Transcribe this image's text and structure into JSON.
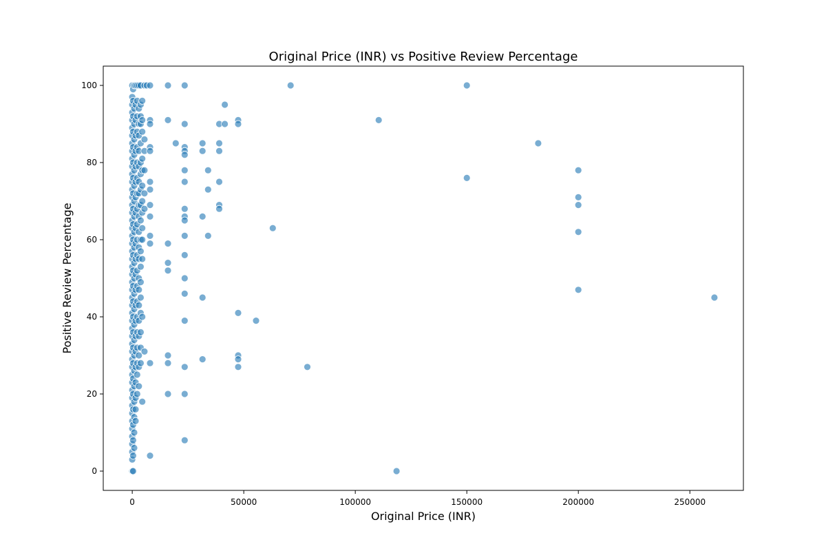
{
  "chart_data": {
    "type": "scatter",
    "title": "Original Price (INR) vs Positive Review Percentage",
    "xlabel": "Original Price (INR)",
    "ylabel": "Positive Review Percentage",
    "xlim": [
      -13000,
      274000
    ],
    "ylim": [
      -5,
      105
    ],
    "x_ticks": [
      0,
      50000,
      100000,
      150000,
      200000,
      250000
    ],
    "y_ticks": [
      0,
      20,
      40,
      60,
      80,
      100
    ],
    "grid": false,
    "marker_color": "#1f77b4",
    "marker_alpha": 0.6,
    "points": [
      [
        0,
        100
      ],
      [
        0,
        97
      ],
      [
        0,
        95
      ],
      [
        0,
        93
      ],
      [
        0,
        91
      ],
      [
        0,
        89
      ],
      [
        0,
        87
      ],
      [
        0,
        85
      ],
      [
        0,
        83
      ],
      [
        0,
        81
      ],
      [
        0,
        79
      ],
      [
        0,
        77
      ],
      [
        0,
        75
      ],
      [
        0,
        73
      ],
      [
        0,
        71
      ],
      [
        0,
        69
      ],
      [
        0,
        67
      ],
      [
        0,
        65
      ],
      [
        0,
        63
      ],
      [
        0,
        61
      ],
      [
        0,
        59
      ],
      [
        0,
        57
      ],
      [
        0,
        55
      ],
      [
        0,
        53
      ],
      [
        0,
        51
      ],
      [
        0,
        49
      ],
      [
        0,
        47
      ],
      [
        0,
        45
      ],
      [
        0,
        43
      ],
      [
        0,
        41
      ],
      [
        0,
        39
      ],
      [
        0,
        37
      ],
      [
        0,
        35
      ],
      [
        0,
        33
      ],
      [
        0,
        31
      ],
      [
        0,
        29
      ],
      [
        0,
        27
      ],
      [
        0,
        25
      ],
      [
        0,
        23
      ],
      [
        0,
        21
      ],
      [
        0,
        19
      ],
      [
        0,
        17
      ],
      [
        0,
        15
      ],
      [
        0,
        13
      ],
      [
        0,
        11
      ],
      [
        0,
        9
      ],
      [
        0,
        7
      ],
      [
        0,
        5
      ],
      [
        0,
        3
      ],
      [
        0,
        0
      ],
      [
        400,
        99
      ],
      [
        400,
        96
      ],
      [
        400,
        92
      ],
      [
        400,
        88
      ],
      [
        400,
        84
      ],
      [
        400,
        80
      ],
      [
        400,
        76
      ],
      [
        400,
        72
      ],
      [
        400,
        68
      ],
      [
        400,
        64
      ],
      [
        400,
        60
      ],
      [
        400,
        56
      ],
      [
        400,
        52
      ],
      [
        400,
        48
      ],
      [
        400,
        44
      ],
      [
        400,
        40
      ],
      [
        400,
        36
      ],
      [
        400,
        32
      ],
      [
        400,
        28
      ],
      [
        400,
        24
      ],
      [
        400,
        20
      ],
      [
        400,
        16
      ],
      [
        400,
        12
      ],
      [
        400,
        8
      ],
      [
        400,
        4
      ],
      [
        400,
        0
      ],
      [
        900,
        100
      ],
      [
        900,
        94
      ],
      [
        900,
        90
      ],
      [
        900,
        86
      ],
      [
        900,
        82
      ],
      [
        900,
        78
      ],
      [
        900,
        74
      ],
      [
        900,
        70
      ],
      [
        900,
        66
      ],
      [
        900,
        62
      ],
      [
        900,
        58
      ],
      [
        900,
        54
      ],
      [
        900,
        50
      ],
      [
        900,
        46
      ],
      [
        900,
        42
      ],
      [
        900,
        38
      ],
      [
        900,
        34
      ],
      [
        900,
        30
      ],
      [
        900,
        26
      ],
      [
        900,
        22
      ],
      [
        900,
        18
      ],
      [
        900,
        14
      ],
      [
        900,
        10
      ],
      [
        900,
        6
      ],
      [
        1500,
        100
      ],
      [
        1500,
        95
      ],
      [
        1500,
        91
      ],
      [
        1500,
        87
      ],
      [
        1500,
        83
      ],
      [
        1500,
        79
      ],
      [
        1500,
        75
      ],
      [
        1500,
        71
      ],
      [
        1500,
        67
      ],
      [
        1500,
        63
      ],
      [
        1500,
        59
      ],
      [
        1500,
        55
      ],
      [
        1500,
        51
      ],
      [
        1500,
        47
      ],
      [
        1500,
        43
      ],
      [
        1500,
        39
      ],
      [
        1500,
        35
      ],
      [
        1500,
        31
      ],
      [
        1500,
        27
      ],
      [
        1500,
        23
      ],
      [
        1500,
        19
      ],
      [
        1500,
        16
      ],
      [
        1500,
        13
      ],
      [
        2200,
        100
      ],
      [
        2200,
        96
      ],
      [
        2200,
        92
      ],
      [
        2200,
        88
      ],
      [
        2200,
        84
      ],
      [
        2200,
        80
      ],
      [
        2200,
        76
      ],
      [
        2200,
        72
      ],
      [
        2200,
        68
      ],
      [
        2200,
        64
      ],
      [
        2200,
        60
      ],
      [
        2200,
        56
      ],
      [
        2200,
        52
      ],
      [
        2200,
        48
      ],
      [
        2200,
        44
      ],
      [
        2200,
        40
      ],
      [
        2200,
        36
      ],
      [
        2200,
        32
      ],
      [
        2200,
        28
      ],
      [
        2200,
        25
      ],
      [
        2200,
        20
      ],
      [
        3000,
        100
      ],
      [
        3000,
        94
      ],
      [
        3000,
        90
      ],
      [
        3000,
        87
      ],
      [
        3000,
        83
      ],
      [
        3000,
        79
      ],
      [
        3000,
        75
      ],
      [
        3000,
        72
      ],
      [
        3000,
        69
      ],
      [
        3000,
        66
      ],
      [
        3000,
        62
      ],
      [
        3000,
        58
      ],
      [
        3000,
        55
      ],
      [
        3000,
        50
      ],
      [
        3000,
        47
      ],
      [
        3000,
        43
      ],
      [
        3000,
        39
      ],
      [
        3000,
        35
      ],
      [
        3000,
        30
      ],
      [
        3000,
        27
      ],
      [
        3000,
        22
      ],
      [
        3800,
        100
      ],
      [
        3800,
        95
      ],
      [
        3800,
        92
      ],
      [
        3800,
        90
      ],
      [
        3800,
        85
      ],
      [
        3800,
        80
      ],
      [
        3800,
        77
      ],
      [
        3800,
        73
      ],
      [
        3800,
        69
      ],
      [
        3800,
        65
      ],
      [
        3800,
        60
      ],
      [
        3800,
        57
      ],
      [
        3800,
        53
      ],
      [
        3800,
        49
      ],
      [
        3800,
        45
      ],
      [
        3800,
        41
      ],
      [
        3800,
        36
      ],
      [
        3800,
        32
      ],
      [
        3800,
        28
      ],
      [
        4500,
        96
      ],
      [
        4500,
        91
      ],
      [
        4500,
        88
      ],
      [
        4500,
        81
      ],
      [
        4500,
        78
      ],
      [
        4500,
        74
      ],
      [
        4500,
        70
      ],
      [
        4500,
        67
      ],
      [
        4500,
        63
      ],
      [
        4500,
        60
      ],
      [
        4500,
        55
      ],
      [
        4500,
        40
      ],
      [
        4500,
        18
      ],
      [
        5500,
        100
      ],
      [
        5500,
        86
      ],
      [
        5500,
        83
      ],
      [
        5500,
        78
      ],
      [
        5500,
        72
      ],
      [
        5500,
        68
      ],
      [
        5500,
        31
      ],
      [
        6500,
        100
      ],
      [
        8000,
        100
      ],
      [
        8000,
        91
      ],
      [
        8000,
        90
      ],
      [
        8000,
        84
      ],
      [
        8000,
        83
      ],
      [
        8000,
        75
      ],
      [
        8000,
        73
      ],
      [
        8000,
        69
      ],
      [
        8000,
        66
      ],
      [
        8000,
        61
      ],
      [
        8000,
        59
      ],
      [
        8000,
        28
      ],
      [
        8000,
        4
      ],
      [
        16000,
        100
      ],
      [
        16000,
        91
      ],
      [
        16000,
        59
      ],
      [
        16000,
        54
      ],
      [
        16000,
        52
      ],
      [
        16000,
        30
      ],
      [
        16000,
        28
      ],
      [
        16000,
        20
      ],
      [
        19500,
        85
      ],
      [
        23500,
        100
      ],
      [
        23500,
        90
      ],
      [
        23500,
        84
      ],
      [
        23500,
        83
      ],
      [
        23500,
        82
      ],
      [
        23500,
        78
      ],
      [
        23500,
        75
      ],
      [
        23500,
        68
      ],
      [
        23500,
        66
      ],
      [
        23500,
        65
      ],
      [
        23500,
        61
      ],
      [
        23500,
        56
      ],
      [
        23500,
        50
      ],
      [
        23500,
        46
      ],
      [
        23500,
        39
      ],
      [
        23500,
        27
      ],
      [
        23500,
        20
      ],
      [
        23500,
        8
      ],
      [
        31500,
        85
      ],
      [
        31500,
        83
      ],
      [
        31500,
        66
      ],
      [
        31500,
        45
      ],
      [
        31500,
        29
      ],
      [
        34000,
        78
      ],
      [
        34000,
        73
      ],
      [
        34000,
        61
      ],
      [
        39000,
        90
      ],
      [
        39000,
        85
      ],
      [
        39000,
        83
      ],
      [
        39000,
        75
      ],
      [
        39000,
        69
      ],
      [
        39000,
        68
      ],
      [
        41500,
        95
      ],
      [
        41500,
        90
      ],
      [
        47500,
        91
      ],
      [
        47500,
        90
      ],
      [
        47500,
        41
      ],
      [
        47500,
        30
      ],
      [
        47500,
        29
      ],
      [
        47500,
        27
      ],
      [
        55500,
        39
      ],
      [
        63000,
        63
      ],
      [
        71000,
        100
      ],
      [
        78500,
        27
      ],
      [
        110500,
        91
      ],
      [
        118500,
        0
      ],
      [
        150000,
        100
      ],
      [
        150000,
        76
      ],
      [
        182000,
        85
      ],
      [
        200000,
        78
      ],
      [
        200000,
        71
      ],
      [
        200000,
        69
      ],
      [
        200000,
        62
      ],
      [
        200000,
        47
      ],
      [
        261000,
        45
      ]
    ]
  }
}
